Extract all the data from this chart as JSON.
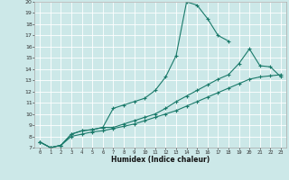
{
  "xlabel": "Humidex (Indice chaleur)",
  "bg_color": "#cce8e8",
  "grid_color": "#ffffff",
  "line_color": "#1a7a6a",
  "xlim": [
    -0.5,
    23.5
  ],
  "ylim": [
    7,
    20
  ],
  "yticks": [
    7,
    8,
    9,
    10,
    11,
    12,
    13,
    14,
    15,
    16,
    17,
    18,
    19,
    20
  ],
  "xticks": [
    0,
    1,
    2,
    3,
    4,
    5,
    6,
    7,
    8,
    9,
    10,
    11,
    12,
    13,
    14,
    15,
    16,
    17,
    18,
    19,
    20,
    21,
    22,
    23
  ],
  "curve1_x": [
    0,
    1,
    2,
    3,
    4,
    5,
    6,
    7,
    8,
    9,
    10,
    11,
    12,
    13,
    14,
    15,
    16,
    17,
    18
  ],
  "curve1_y": [
    7.5,
    7.0,
    7.2,
    8.2,
    8.5,
    8.6,
    8.8,
    10.5,
    10.8,
    11.1,
    11.4,
    12.1,
    13.3,
    15.2,
    20.0,
    19.7,
    18.5,
    17.0,
    16.5
  ],
  "curve2_x": [
    0,
    1,
    2,
    3,
    4,
    5,
    6,
    7,
    8,
    9,
    10,
    11,
    12,
    13,
    14,
    15,
    16,
    17,
    18,
    19,
    20,
    21,
    22,
    23
  ],
  "curve2_y": [
    7.5,
    7.0,
    7.2,
    8.2,
    8.5,
    8.6,
    8.8,
    8.8,
    9.1,
    9.4,
    9.7,
    10.0,
    10.5,
    11.1,
    11.6,
    12.1,
    12.6,
    13.1,
    13.5,
    14.5,
    15.8,
    14.3,
    14.2,
    13.3
  ],
  "curve3_x": [
    0,
    1,
    2,
    3,
    4,
    5,
    6,
    7,
    8,
    9,
    10,
    11,
    12,
    13,
    14,
    15,
    16,
    17,
    18,
    19,
    20,
    21,
    22,
    23
  ],
  "curve3_y": [
    7.5,
    7.0,
    7.2,
    8.0,
    8.2,
    8.4,
    8.5,
    8.7,
    8.9,
    9.1,
    9.4,
    9.7,
    10.0,
    10.3,
    10.7,
    11.1,
    11.5,
    11.9,
    12.3,
    12.7,
    13.1,
    13.3,
    13.4,
    13.5
  ]
}
